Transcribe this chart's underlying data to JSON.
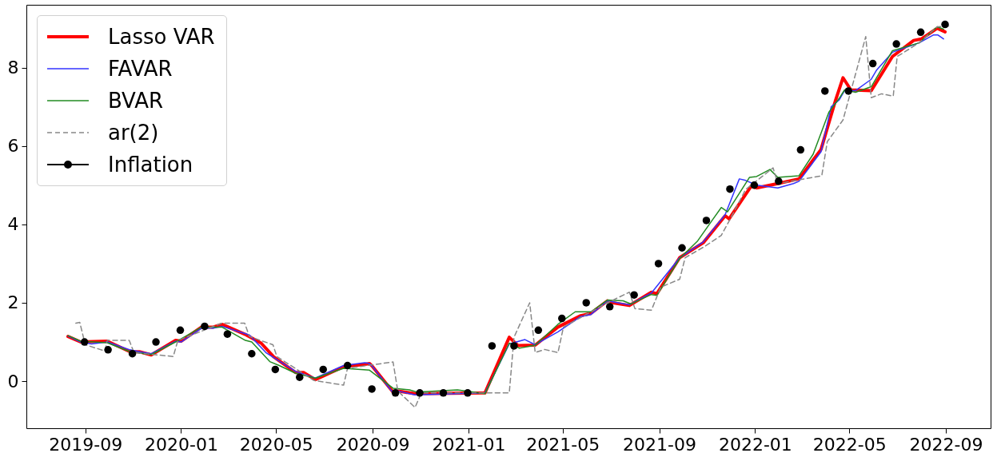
{
  "chart_data": {
    "type": "line",
    "legend": "top left",
    "xlim": [
      "2019-06-18",
      "2022-10-28"
    ],
    "xticks": [
      "2019-09",
      "2020-01",
      "2020-05",
      "2020-09",
      "2021-01",
      "2021-05",
      "2021-09",
      "2022-01",
      "2022-05",
      "2022-09"
    ],
    "ylim": [
      -1.2,
      9.6
    ],
    "yticks": [
      0,
      2,
      4,
      6,
      8
    ],
    "series": [
      {
        "name": "Lasso VAR",
        "color": "#ff0000",
        "line_style": "solid",
        "x": [
          "2019-08-10",
          "2019-08-26",
          "2019-09-29",
          "2019-10-28",
          "2019-11-09",
          "2019-11-24",
          "2019-12-25",
          "2020-01-01",
          "2020-01-27",
          "2020-02-11",
          "2020-02-22",
          "2020-03-24",
          "2020-04-12",
          "2020-04-28",
          "2020-05-26",
          "2020-06-05",
          "2020-06-20",
          "2020-07-26",
          "2020-08-22",
          "2020-08-28",
          "2020-09-01",
          "2020-09-27",
          "2020-10-03",
          "2020-10-25",
          "2021-01-22",
          "2021-02-22",
          "2021-03-05",
          "2021-03-27",
          "2021-04-25",
          "2021-05-24",
          "2021-06-06",
          "2021-06-27",
          "2021-07-04",
          "2021-07-25",
          "2021-08-22",
          "2021-08-29",
          "2021-09-27",
          "2021-10-27",
          "2021-11-24",
          "2021-11-29",
          "2021-12-27",
          "2022-01-03",
          "2022-01-30",
          "2022-02-26",
          "2022-03-26",
          "2022-04-13",
          "2022-04-23",
          "2022-05-03",
          "2022-05-29",
          "2022-06-25",
          "2022-07-22",
          "2022-08-01",
          "2022-08-21",
          "2022-08-31"
        ],
        "values": [
          1.14,
          1.0,
          1.02,
          0.75,
          0.75,
          0.67,
          1.04,
          1.02,
          1.38,
          1.38,
          1.45,
          1.18,
          0.97,
          0.62,
          0.22,
          0.22,
          0.04,
          0.37,
          0.43,
          0.45,
          0.37,
          -0.28,
          -0.25,
          -0.32,
          -0.3,
          1.12,
          0.91,
          0.92,
          1.38,
          1.67,
          1.73,
          2.05,
          2.0,
          1.93,
          2.27,
          2.23,
          3.15,
          3.53,
          4.22,
          4.14,
          4.97,
          4.93,
          5.04,
          5.16,
          5.91,
          7.13,
          7.74,
          7.43,
          7.41,
          8.28,
          8.69,
          8.73,
          9.0,
          8.91
        ]
      },
      {
        "name": "FAVAR",
        "color": "#3333ff",
        "line_style": "solid",
        "x": [
          "2019-08-10",
          "2019-08-26",
          "2019-09-09",
          "2019-09-29",
          "2019-10-28",
          "2019-11-09",
          "2019-11-24",
          "2019-12-25",
          "2020-01-01",
          "2020-01-27",
          "2020-02-11",
          "2020-02-22",
          "2020-03-28",
          "2020-04-18",
          "2020-05-26",
          "2020-06-20",
          "2020-07-26",
          "2020-08-22",
          "2020-08-28",
          "2020-09-01",
          "2020-09-27",
          "2020-10-03",
          "2020-10-25",
          "2021-01-22",
          "2021-02-22",
          "2021-03-14",
          "2021-03-27",
          "2021-04-25",
          "2021-05-24",
          "2021-06-06",
          "2021-06-27",
          "2021-07-25",
          "2021-08-22",
          "2021-09-27",
          "2021-10-27",
          "2021-11-24",
          "2021-12-12",
          "2021-12-20",
          "2022-01-03",
          "2022-01-30",
          "2022-02-19",
          "2022-02-26",
          "2022-03-26",
          "2022-04-08",
          "2022-04-18",
          "2022-04-25",
          "2022-05-09",
          "2022-05-29",
          "2022-06-05",
          "2022-06-25",
          "2022-07-29",
          "2022-08-16",
          "2022-08-22",
          "2022-08-29"
        ],
        "values": [
          1.15,
          1.0,
          0.95,
          1.0,
          0.8,
          0.75,
          0.7,
          1.02,
          1.0,
          1.35,
          1.35,
          1.4,
          1.18,
          0.73,
          0.25,
          0.08,
          0.4,
          0.47,
          0.45,
          0.37,
          -0.3,
          -0.25,
          -0.35,
          -0.3,
          0.95,
          1.06,
          0.93,
          1.26,
          1.65,
          1.7,
          2.05,
          1.95,
          2.25,
          3.15,
          3.55,
          4.25,
          5.16,
          5.12,
          5.0,
          4.93,
          5.04,
          5.1,
          5.85,
          7.0,
          7.17,
          7.41,
          7.41,
          7.7,
          7.94,
          8.39,
          8.63,
          8.83,
          8.83,
          8.73
        ]
      },
      {
        "name": "BVAR",
        "color": "#228b22",
        "line_style": "solid",
        "x": [
          "2019-08-10",
          "2019-08-26",
          "2019-09-29",
          "2019-10-28",
          "2019-11-24",
          "2019-12-25",
          "2020-01-27",
          "2020-02-22",
          "2020-03-23",
          "2020-03-31",
          "2020-04-23",
          "2020-05-05",
          "2020-05-26",
          "2020-06-20",
          "2020-07-26",
          "2020-08-28",
          "2020-09-27",
          "2020-10-18",
          "2020-10-28",
          "2020-12-18",
          "2021-01-22",
          "2021-02-22",
          "2021-03-07",
          "2021-03-27",
          "2021-04-25",
          "2021-05-17",
          "2021-06-06",
          "2021-06-27",
          "2021-07-17",
          "2021-07-27",
          "2021-08-22",
          "2021-08-29",
          "2021-09-27",
          "2021-10-20",
          "2021-11-08",
          "2021-11-19",
          "2021-11-27",
          "2021-12-25",
          "2022-01-03",
          "2022-01-20",
          "2022-01-30",
          "2022-02-26",
          "2022-03-16",
          "2022-04-05",
          "2022-04-18",
          "2022-04-25",
          "2022-05-09",
          "2022-05-29",
          "2022-06-25",
          "2022-07-29",
          "2022-08-21",
          "2022-08-29"
        ],
        "values": [
          1.16,
          1.02,
          0.98,
          0.75,
          0.68,
          1.0,
          1.38,
          1.38,
          1.04,
          1.0,
          0.5,
          0.4,
          0.2,
          0.08,
          0.33,
          0.28,
          -0.18,
          -0.22,
          -0.28,
          -0.22,
          -0.32,
          0.97,
          0.84,
          0.92,
          1.45,
          1.77,
          1.77,
          2.07,
          2.05,
          1.97,
          2.21,
          2.19,
          3.13,
          3.58,
          4.12,
          4.43,
          4.32,
          5.2,
          5.22,
          5.4,
          5.2,
          5.24,
          5.79,
          6.86,
          7.21,
          7.43,
          7.37,
          7.51,
          8.43,
          8.63,
          9.04,
          8.98
        ]
      },
      {
        "name": "ar(2)",
        "color": "#888888",
        "line_style": "dashed",
        "x": [
          "2019-08-20",
          "2019-08-25",
          "2019-09-01",
          "2019-09-26",
          "2019-09-29",
          "2019-10-27",
          "2019-11-02",
          "2019-12-22",
          "2019-12-28",
          "2020-02-22",
          "2020-03-22",
          "2020-03-28",
          "2020-04-27",
          "2020-05-02",
          "2020-06-18",
          "2020-07-26",
          "2020-07-31",
          "2020-09-27",
          "2020-10-03",
          "2020-10-25",
          "2020-11-02",
          "2021-02-22",
          "2021-02-28",
          "2021-03-20",
          "2021-03-27",
          "2021-04-08",
          "2021-04-25",
          "2021-05-02",
          "2021-06-27",
          "2021-07-25",
          "2021-08-01",
          "2021-08-22",
          "2021-09-03",
          "2021-09-27",
          "2021-10-04",
          "2021-10-30",
          "2021-11-19",
          "2021-11-30",
          "2021-12-20",
          "2022-01-24",
          "2022-01-30",
          "2022-03-27",
          "2022-04-03",
          "2022-04-23",
          "2022-05-22",
          "2022-05-29",
          "2022-06-11",
          "2022-06-26",
          "2022-07-01",
          "2022-07-29",
          "2022-08-21",
          "2022-09-05"
        ],
        "values": [
          1.48,
          1.5,
          0.93,
          0.77,
          1.04,
          1.04,
          0.73,
          0.63,
          1.04,
          1.48,
          1.48,
          1.14,
          0.93,
          0.63,
          0.02,
          -0.1,
          0.33,
          0.49,
          -0.25,
          -0.67,
          -0.3,
          -0.3,
          1.12,
          2.0,
          0.73,
          0.81,
          0.73,
          1.38,
          2.0,
          2.27,
          1.85,
          1.81,
          2.4,
          2.6,
          3.15,
          3.45,
          3.72,
          4.12,
          4.89,
          5.44,
          5.04,
          5.24,
          6.11,
          6.66,
          8.79,
          7.23,
          7.33,
          7.27,
          8.28,
          8.63,
          9.04,
          9.06
        ]
      },
      {
        "name": "Inflation",
        "type": "scatter",
        "marker": "circle",
        "color": "#000000",
        "x": [
          "2019-08-31",
          "2019-09-30",
          "2019-10-31",
          "2019-11-30",
          "2019-12-31",
          "2020-01-31",
          "2020-02-29",
          "2020-03-31",
          "2020-04-30",
          "2020-05-31",
          "2020-06-30",
          "2020-07-31",
          "2020-08-31",
          "2020-09-30",
          "2020-10-31",
          "2020-11-30",
          "2020-12-31",
          "2021-01-31",
          "2021-02-28",
          "2021-03-31",
          "2021-04-30",
          "2021-05-31",
          "2021-06-30",
          "2021-07-31",
          "2021-08-31",
          "2021-09-30",
          "2021-10-31",
          "2021-11-30",
          "2021-12-31",
          "2022-01-31",
          "2022-02-28",
          "2022-03-31",
          "2022-04-30",
          "2022-05-31",
          "2022-06-30",
          "2022-07-31",
          "2022-08-31"
        ],
        "values": [
          1.0,
          0.8,
          0.7,
          1.0,
          1.3,
          1.4,
          1.2,
          0.7,
          0.3,
          0.1,
          0.3,
          0.4,
          -0.2,
          -0.3,
          -0.3,
          -0.3,
          -0.3,
          0.9,
          0.9,
          1.3,
          1.6,
          2.0,
          1.9,
          2.2,
          3.0,
          3.4,
          4.1,
          4.9,
          5.0,
          5.1,
          5.9,
          7.4,
          7.4,
          8.1,
          8.6,
          8.9,
          9.1
        ]
      }
    ]
  }
}
